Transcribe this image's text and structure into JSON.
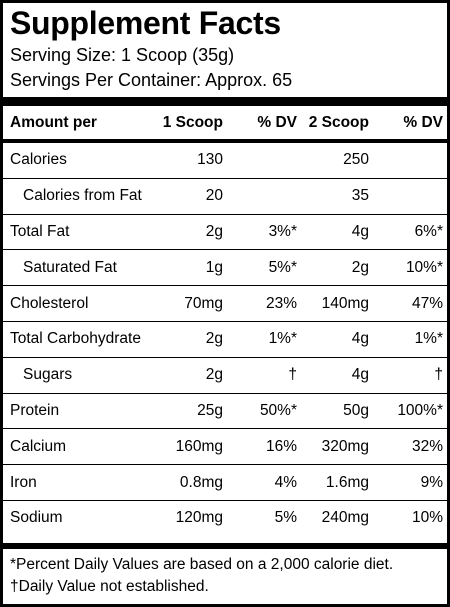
{
  "title": "Supplement Facts",
  "serving_size": "Serving Size: 1 Scoop (35g)",
  "servings_per_container": "Servings Per Container: Approx. 65",
  "columns": {
    "amount_per": "Amount per",
    "serving1": "1 Scoop",
    "dv1": "% DV",
    "serving2": "2 Scoop",
    "dv2": "% DV"
  },
  "rows": [
    {
      "name": "Calories",
      "indent": false,
      "s1": "130",
      "d1": "",
      "s2": "250",
      "d2": ""
    },
    {
      "name": "Calories from Fat",
      "indent": true,
      "s1": "20",
      "d1": "",
      "s2": "35",
      "d2": ""
    },
    {
      "name": "Total Fat",
      "indent": false,
      "s1": "2g",
      "d1": "3%*",
      "s2": "4g",
      "d2": "6%*"
    },
    {
      "name": "Saturated Fat",
      "indent": true,
      "s1": "1g",
      "d1": "5%*",
      "s2": "2g",
      "d2": "10%*"
    },
    {
      "name": "Cholesterol",
      "indent": false,
      "s1": "70mg",
      "d1": "23%",
      "s2": "140mg",
      "d2": "47%"
    },
    {
      "name": "Total Carbohydrate",
      "indent": false,
      "s1": "2g",
      "d1": "1%*",
      "s2": "4g",
      "d2": "1%*"
    },
    {
      "name": "Sugars",
      "indent": true,
      "s1": "2g",
      "d1": "†",
      "s2": "4g",
      "d2": "†"
    },
    {
      "name": "Protein",
      "indent": false,
      "s1": "25g",
      "d1": "50%*",
      "s2": "50g",
      "d2": "100%*"
    },
    {
      "name": "Calcium",
      "indent": false,
      "s1": "160mg",
      "d1": "16%",
      "s2": "320mg",
      "d2": "32%"
    },
    {
      "name": "Iron",
      "indent": false,
      "s1": "0.8mg",
      "d1": "4%",
      "s2": "1.6mg",
      "d2": "9%"
    },
    {
      "name": "Sodium",
      "indent": false,
      "s1": "120mg",
      "d1": "5%",
      "s2": "240mg",
      "d2": "10%"
    }
  ],
  "footnote_dv": "*Percent Daily Values are based on a 2,000 calorie diet.",
  "footnote_na": "†Daily Value not established."
}
